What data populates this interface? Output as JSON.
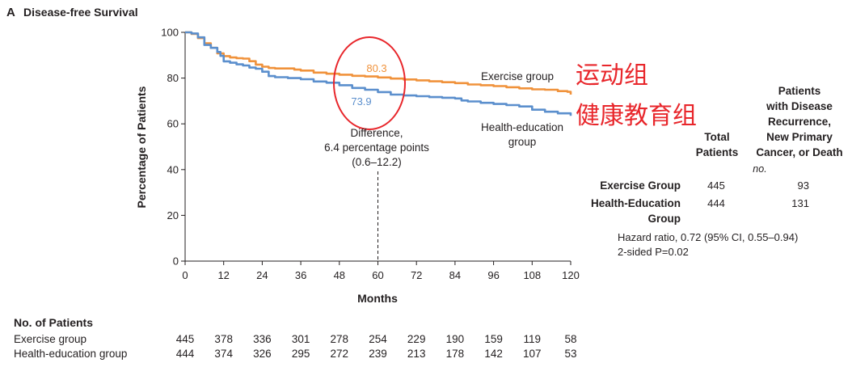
{
  "panel_letter": "A",
  "panel_title": "Disease-free Survival",
  "chart_data": {
    "type": "line",
    "title": "Disease-free Survival",
    "xlabel": "Months",
    "ylabel": "Percentage of Patients",
    "xlim": [
      0,
      120
    ],
    "ylim": [
      0,
      100
    ],
    "x_ticks": [
      0,
      12,
      24,
      36,
      48,
      60,
      72,
      84,
      96,
      108,
      120
    ],
    "y_ticks": [
      0,
      20,
      40,
      60,
      80,
      100
    ],
    "grid": false,
    "series": [
      {
        "name": "Exercise group",
        "color": "#f0923b",
        "x": [
          0,
          2,
          4,
          6,
          8,
          10,
          12,
          14,
          16,
          18,
          20,
          22,
          24,
          26,
          28,
          30,
          34,
          36,
          40,
          44,
          48,
          52,
          56,
          60,
          64,
          68,
          72,
          76,
          80,
          84,
          88,
          92,
          96,
          100,
          104,
          108,
          112,
          116,
          119,
          120
        ],
        "y": [
          100,
          99.3,
          97.5,
          95.2,
          93.2,
          90.8,
          89.6,
          89.0,
          88.7,
          88.5,
          87.4,
          85.9,
          85.0,
          84.4,
          84.2,
          84.2,
          83.7,
          83.3,
          82.4,
          81.9,
          81.5,
          81.0,
          80.7,
          80.3,
          79.8,
          79.4,
          79.0,
          78.6,
          78.2,
          77.8,
          77.2,
          76.9,
          76.5,
          76.0,
          75.5,
          75.1,
          74.9,
          74.3,
          74.0,
          72.8
        ]
      },
      {
        "name": "Health-education group",
        "color": "#5b8fcd",
        "x": [
          0,
          2,
          4,
          6,
          8,
          10,
          11,
          12,
          14,
          16,
          18,
          20,
          22,
          24,
          26,
          28,
          32,
          36,
          40,
          44,
          48,
          52,
          56,
          60,
          64,
          68,
          72,
          76,
          80,
          84,
          86,
          88,
          92,
          96,
          100,
          104,
          108,
          112,
          116,
          120
        ],
        "y": [
          100,
          99.5,
          97.8,
          94.5,
          93.2,
          91.4,
          89.7,
          87.3,
          86.7,
          86.0,
          85.5,
          84.6,
          84.1,
          82.8,
          80.9,
          80.4,
          80.0,
          79.5,
          78.5,
          78.0,
          76.9,
          75.7,
          74.9,
          73.9,
          72.8,
          72.4,
          72.1,
          71.7,
          71.4,
          71.1,
          70.2,
          69.8,
          69.2,
          68.7,
          68.2,
          67.6,
          66.2,
          65.3,
          64.6,
          63.5
        ]
      }
    ],
    "annotations": {
      "exercise_at_60": "80.3",
      "health_at_60": "73.9",
      "series_label_exercise": "Exercise group",
      "series_label_health_line1": "Health-education",
      "series_label_health_line2": "group",
      "difference_line1": "Difference,",
      "difference_line2": "6.4 percentage points",
      "difference_line3": "(0.6–12.2)",
      "marker_month": 60
    },
    "overlay_labels": {
      "exercise": "运动组",
      "health": "健康教育组",
      "color": "#e8262b"
    },
    "at_risk": {
      "title": "No. of Patients",
      "months": [
        0,
        12,
        24,
        36,
        48,
        60,
        72,
        84,
        96,
        108,
        120
      ],
      "rows": [
        {
          "label": "Exercise group",
          "values": [
            445,
            378,
            336,
            301,
            278,
            254,
            229,
            190,
            159,
            119,
            58
          ]
        },
        {
          "label": "Health-education group",
          "values": [
            444,
            374,
            326,
            295,
            272,
            239,
            213,
            178,
            142,
            107,
            53
          ]
        }
      ]
    },
    "summary_table": {
      "header_total": [
        "Total",
        "Patients"
      ],
      "header_events": [
        "Patients",
        "with Disease",
        "Recurrence,",
        "New Primary",
        "Cancer, or Death"
      ],
      "header_unit": "no.",
      "rows": [
        {
          "label": [
            "Exercise Group"
          ],
          "total": "445",
          "events": "93"
        },
        {
          "label": [
            "Health-Education",
            "Group"
          ],
          "total": "444",
          "events": "131"
        }
      ],
      "hazard_line1": "Hazard ratio, 0.72 (95% CI, 0.55–0.94)",
      "hazard_line2": "2-sided P=0.02"
    }
  }
}
